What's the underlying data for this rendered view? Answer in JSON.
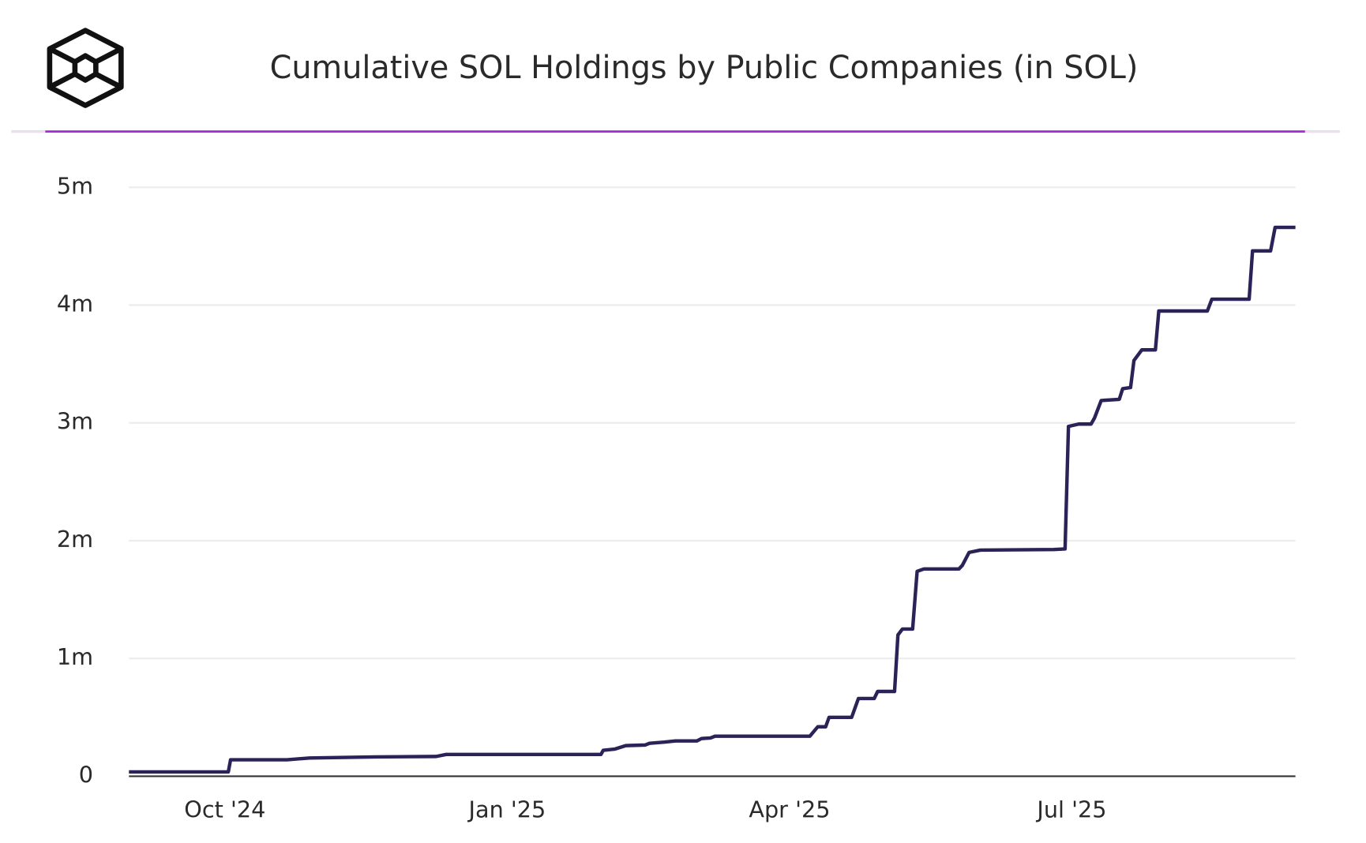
{
  "chart_data": {
    "type": "line",
    "title": "Cumulative SOL Holdings by Public Companies (in SOL)",
    "x": [
      2024.665,
      2024.753,
      2024.755,
      2024.805,
      2024.825,
      2024.883,
      2024.937,
      2024.946,
      2025.083,
      2025.085,
      2025.095,
      2025.105,
      2025.122,
      2025.126,
      2025.139,
      2025.149,
      2025.168,
      2025.172,
      2025.18,
      2025.184,
      2025.268,
      2025.275,
      2025.282,
      2025.285,
      2025.305,
      2025.311,
      2025.325,
      2025.328,
      2025.343,
      2025.346,
      2025.35,
      2025.359,
      2025.363,
      2025.369,
      2025.4,
      2025.403,
      2025.409,
      2025.419,
      2025.484,
      2025.494,
      2025.497,
      2025.506,
      2025.517,
      2025.52,
      2025.526,
      2025.542,
      2025.545,
      2025.552,
      2025.555,
      2025.562,
      2025.574,
      2025.577,
      2025.62,
      2025.624,
      2025.657,
      2025.66,
      2025.676,
      2025.68,
      2025.698
    ],
    "series": [
      {
        "color": "#2b2358",
        "values": [
          37000,
          37000,
          140000,
          140000,
          155000,
          164000,
          168000,
          185000,
          185000,
          220000,
          230000,
          260000,
          265000,
          280000,
          290000,
          300000,
          300000,
          320000,
          325000,
          340000,
          340000,
          420000,
          420000,
          500000,
          500000,
          660000,
          660000,
          720000,
          720000,
          1200000,
          1250000,
          1250000,
          1740000,
          1760000,
          1760000,
          1790000,
          1900000,
          1920000,
          1925000,
          1930000,
          2970000,
          2990000,
          2990000,
          3040000,
          3190000,
          3200000,
          3290000,
          3300000,
          3530000,
          3620000,
          3620000,
          3950000,
          3950000,
          4050000,
          4050000,
          4460000,
          4460000,
          4660000,
          4660000
        ]
      }
    ],
    "xlim": [
      2024.665,
      2025.698
    ],
    "xticks": [
      {
        "value": 2024.75,
        "label": "Oct '24"
      },
      {
        "value": 2025.0,
        "label": "Jan '25"
      },
      {
        "value": 2025.25,
        "label": "Apr '25"
      },
      {
        "value": 2025.5,
        "label": "Jul '25"
      }
    ],
    "ylim": [
      0,
      5000000
    ],
    "yticks": [
      0,
      {
        "value": 1000000,
        "label": "1m"
      },
      {
        "value": 2000000,
        "label": "2m"
      },
      {
        "value": 3000000,
        "label": "3m"
      },
      {
        "value": 4000000,
        "label": "4m"
      },
      {
        "value": 5000000,
        "label": "5m"
      }
    ],
    "grid": true
  }
}
